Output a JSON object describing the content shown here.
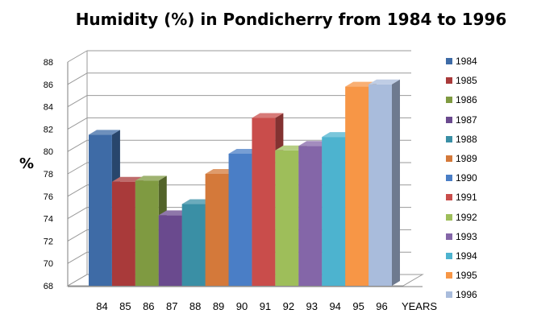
{
  "chart_data": {
    "type": "bar",
    "title": "Humidity (%) in Pondicherry from 1984 to 1996",
    "ylabel": "%",
    "xlabel": "YEARS",
    "ylim": [
      68,
      88
    ],
    "yticks": [
      68,
      70,
      72,
      74,
      76,
      78,
      80,
      82,
      84,
      86,
      88
    ],
    "categories": [
      "84",
      "85",
      "86",
      "87",
      "88",
      "89",
      "90",
      "91",
      "92",
      "93",
      "94",
      "95",
      "96"
    ],
    "series": [
      {
        "name": "1984",
        "value": 81.5,
        "color": "#3E6BA6"
      },
      {
        "name": "1985",
        "value": 77.3,
        "color": "#A93A3A"
      },
      {
        "name": "1986",
        "value": 77.4,
        "color": "#7F9A41"
      },
      {
        "name": "1987",
        "value": 74.3,
        "color": "#6A4A8E"
      },
      {
        "name": "1988",
        "value": 75.3,
        "color": "#3A8FA5"
      },
      {
        "name": "1989",
        "value": 78.0,
        "color": "#D4793A"
      },
      {
        "name": "1990",
        "value": 79.8,
        "color": "#4A7EC6"
      },
      {
        "name": "1991",
        "value": 83.0,
        "color": "#C94D4B"
      },
      {
        "name": "1992",
        "value": 80.1,
        "color": "#9EBE5A"
      },
      {
        "name": "1993",
        "value": 80.5,
        "color": "#8466A8"
      },
      {
        "name": "1994",
        "value": 81.3,
        "color": "#4DB3CF"
      },
      {
        "name": "1995",
        "value": 85.8,
        "color": "#F79646"
      },
      {
        "name": "1996",
        "value": 86.0,
        "color": "#A9BCDC"
      }
    ],
    "legend": "right",
    "grid": true
  }
}
